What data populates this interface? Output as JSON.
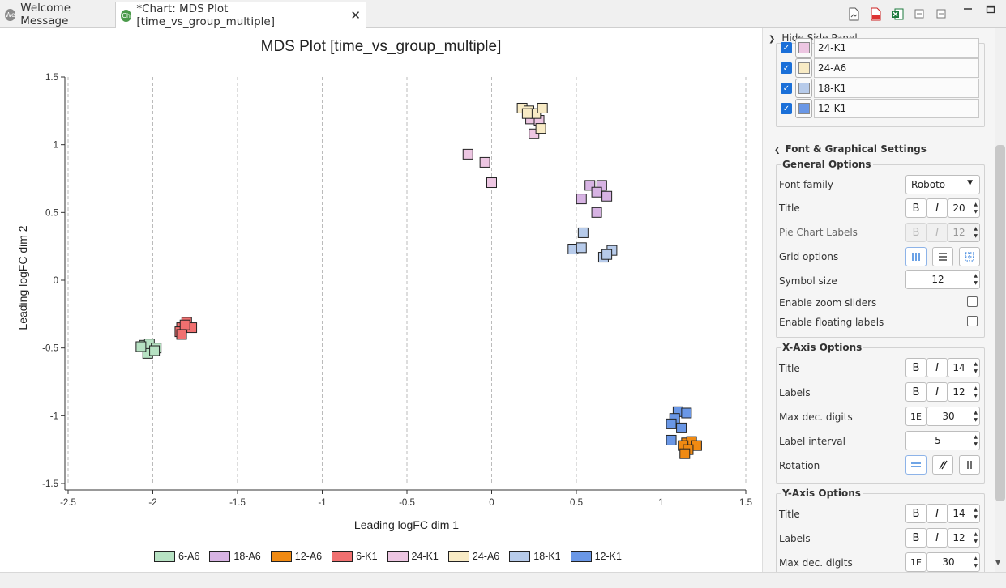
{
  "tabs": [
    {
      "label": "Welcome Message",
      "icon": "We"
    },
    {
      "label": "*Chart: MDS Plot [time_vs_group_multiple]",
      "icon": "Ch",
      "close": "✕"
    }
  ],
  "chart_data": {
    "type": "scatter",
    "title": "MDS Plot [time_vs_group_multiple]",
    "xlabel": "Leading logFC dim 1",
    "ylabel": "Leading logFC dim 2",
    "xlim": [
      -2.5,
      1.5
    ],
    "ylim": [
      -1.5,
      1.5
    ],
    "x_ticks": [
      "-2.5",
      "-2",
      "-1.5",
      "-1",
      "-0.5",
      "0",
      "0.5",
      "1",
      "1.5"
    ],
    "y_ticks": [
      "1.5",
      "1",
      "0.5",
      "0",
      "-0.5",
      "-1",
      "-1.5"
    ],
    "grid": "vertical",
    "legend_position": "bottom",
    "series": [
      {
        "name": "6-A6",
        "color": "#b7e2c3",
        "points": [
          [
            -2.05,
            -0.48
          ],
          [
            -2.02,
            -0.47
          ],
          [
            -1.98,
            -0.5
          ],
          [
            -2.03,
            -0.54
          ],
          [
            -1.99,
            -0.52
          ],
          [
            -2.07,
            -0.49
          ]
        ]
      },
      {
        "name": "18-A6",
        "color": "#d7b3e3",
        "points": [
          [
            0.58,
            0.7
          ],
          [
            0.65,
            0.7
          ],
          [
            0.62,
            0.65
          ],
          [
            0.68,
            0.62
          ],
          [
            0.53,
            0.6
          ],
          [
            0.62,
            0.5
          ]
        ]
      },
      {
        "name": "12-A6",
        "color": "#f08a12",
        "points": [
          [
            1.15,
            -1.2
          ],
          [
            1.18,
            -1.19
          ],
          [
            1.21,
            -1.22
          ],
          [
            1.13,
            -1.22
          ],
          [
            1.16,
            -1.25
          ],
          [
            1.14,
            -1.28
          ]
        ]
      },
      {
        "name": "6-K1",
        "color": "#f07070",
        "points": [
          [
            -1.83,
            -0.35
          ],
          [
            -1.8,
            -0.31
          ],
          [
            -1.77,
            -0.35
          ],
          [
            -1.84,
            -0.38
          ],
          [
            -1.81,
            -0.33
          ],
          [
            -1.83,
            -0.4
          ]
        ]
      },
      {
        "name": "24-K1",
        "color": "#edc6e2",
        "points": [
          [
            -0.14,
            0.93
          ],
          [
            -0.04,
            0.87
          ],
          [
            0.0,
            0.72
          ],
          [
            0.23,
            1.19
          ],
          [
            0.28,
            1.18
          ],
          [
            0.25,
            1.08
          ]
        ]
      },
      {
        "name": "24-A6",
        "color": "#f8ebc5",
        "points": [
          [
            0.18,
            1.27
          ],
          [
            0.22,
            1.25
          ],
          [
            0.26,
            1.23
          ],
          [
            0.3,
            1.27
          ],
          [
            0.21,
            1.23
          ],
          [
            0.29,
            1.12
          ]
        ]
      },
      {
        "name": "18-K1",
        "color": "#b7cbea",
        "points": [
          [
            0.54,
            0.35
          ],
          [
            0.48,
            0.23
          ],
          [
            0.53,
            0.24
          ],
          [
            0.71,
            0.22
          ],
          [
            0.66,
            0.17
          ],
          [
            0.68,
            0.19
          ]
        ]
      },
      {
        "name": "12-K1",
        "color": "#6a97e6",
        "points": [
          [
            1.1,
            -0.97
          ],
          [
            1.15,
            -0.98
          ],
          [
            1.08,
            -1.02
          ],
          [
            1.06,
            -1.06
          ],
          [
            1.12,
            -1.09
          ],
          [
            1.06,
            -1.18
          ]
        ]
      }
    ]
  },
  "side_panel": {
    "hide_label": "Hide Side Panel",
    "series_rows": [
      {
        "label": "24-K1",
        "color": "#edc6e2"
      },
      {
        "label": "24-A6",
        "color": "#f8ebc5"
      },
      {
        "label": "18-K1",
        "color": "#b7cbea"
      },
      {
        "label": "12-K1",
        "color": "#6a97e6"
      }
    ],
    "font_section": "Font & Graphical Settings",
    "general": {
      "title": "General Options",
      "font_family_label": "Font family",
      "font_family_value": "Roboto",
      "title_label": "Title",
      "title_size": "20",
      "pie_label": "Pie Chart Labels",
      "pie_size": "12",
      "grid_label": "Grid options",
      "symbol_label": "Symbol size",
      "symbol_value": "12",
      "zoom_label": "Enable zoom sliders",
      "floating_label": "Enable floating labels"
    },
    "xaxis": {
      "title": "X-Axis Options",
      "title_label": "Title",
      "title_size": "14",
      "labels_label": "Labels",
      "labels_size": "12",
      "maxdec_label": "Max dec. digits",
      "maxdec_value": "30",
      "interval_label": "Label interval",
      "interval_value": "5",
      "rotation_label": "Rotation"
    },
    "yaxis": {
      "title": "Y-Axis Options",
      "title_label": "Title",
      "title_size": "14",
      "labels_label": "Labels",
      "labels_size": "12",
      "maxdec_label": "Max dec. digits",
      "maxdec_value": "30"
    },
    "bold_glyph": "B",
    "italic_glyph": "I",
    "exp_glyph": "1E"
  }
}
